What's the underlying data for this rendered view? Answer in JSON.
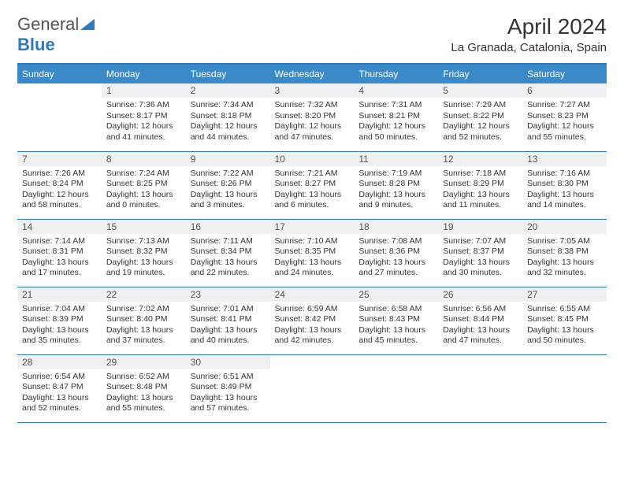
{
  "logo": {
    "word1": "General",
    "word2": "Blue"
  },
  "title": "April 2024",
  "location": "La Granada, Catalonia, Spain",
  "colors": {
    "header_bg": "#3a8ac9",
    "header_text": "#ffffff",
    "border": "#2e7abf",
    "daynum_bg": "#eef0f1",
    "text": "#333333"
  },
  "weekdays": [
    "Sunday",
    "Monday",
    "Tuesday",
    "Wednesday",
    "Thursday",
    "Friday",
    "Saturday"
  ],
  "weeks": [
    [
      null,
      {
        "n": "1",
        "sr": "Sunrise: 7:36 AM",
        "ss": "Sunset: 8:17 PM",
        "dl": "Daylight: 12 hours and 41 minutes."
      },
      {
        "n": "2",
        "sr": "Sunrise: 7:34 AM",
        "ss": "Sunset: 8:18 PM",
        "dl": "Daylight: 12 hours and 44 minutes."
      },
      {
        "n": "3",
        "sr": "Sunrise: 7:32 AM",
        "ss": "Sunset: 8:20 PM",
        "dl": "Daylight: 12 hours and 47 minutes."
      },
      {
        "n": "4",
        "sr": "Sunrise: 7:31 AM",
        "ss": "Sunset: 8:21 PM",
        "dl": "Daylight: 12 hours and 50 minutes."
      },
      {
        "n": "5",
        "sr": "Sunrise: 7:29 AM",
        "ss": "Sunset: 8:22 PM",
        "dl": "Daylight: 12 hours and 52 minutes."
      },
      {
        "n": "6",
        "sr": "Sunrise: 7:27 AM",
        "ss": "Sunset: 8:23 PM",
        "dl": "Daylight: 12 hours and 55 minutes."
      }
    ],
    [
      {
        "n": "7",
        "sr": "Sunrise: 7:26 AM",
        "ss": "Sunset: 8:24 PM",
        "dl": "Daylight: 12 hours and 58 minutes."
      },
      {
        "n": "8",
        "sr": "Sunrise: 7:24 AM",
        "ss": "Sunset: 8:25 PM",
        "dl": "Daylight: 13 hours and 0 minutes."
      },
      {
        "n": "9",
        "sr": "Sunrise: 7:22 AM",
        "ss": "Sunset: 8:26 PM",
        "dl": "Daylight: 13 hours and 3 minutes."
      },
      {
        "n": "10",
        "sr": "Sunrise: 7:21 AM",
        "ss": "Sunset: 8:27 PM",
        "dl": "Daylight: 13 hours and 6 minutes."
      },
      {
        "n": "11",
        "sr": "Sunrise: 7:19 AM",
        "ss": "Sunset: 8:28 PM",
        "dl": "Daylight: 13 hours and 9 minutes."
      },
      {
        "n": "12",
        "sr": "Sunrise: 7:18 AM",
        "ss": "Sunset: 8:29 PM",
        "dl": "Daylight: 13 hours and 11 minutes."
      },
      {
        "n": "13",
        "sr": "Sunrise: 7:16 AM",
        "ss": "Sunset: 8:30 PM",
        "dl": "Daylight: 13 hours and 14 minutes."
      }
    ],
    [
      {
        "n": "14",
        "sr": "Sunrise: 7:14 AM",
        "ss": "Sunset: 8:31 PM",
        "dl": "Daylight: 13 hours and 17 minutes."
      },
      {
        "n": "15",
        "sr": "Sunrise: 7:13 AM",
        "ss": "Sunset: 8:32 PM",
        "dl": "Daylight: 13 hours and 19 minutes."
      },
      {
        "n": "16",
        "sr": "Sunrise: 7:11 AM",
        "ss": "Sunset: 8:34 PM",
        "dl": "Daylight: 13 hours and 22 minutes."
      },
      {
        "n": "17",
        "sr": "Sunrise: 7:10 AM",
        "ss": "Sunset: 8:35 PM",
        "dl": "Daylight: 13 hours and 24 minutes."
      },
      {
        "n": "18",
        "sr": "Sunrise: 7:08 AM",
        "ss": "Sunset: 8:36 PM",
        "dl": "Daylight: 13 hours and 27 minutes."
      },
      {
        "n": "19",
        "sr": "Sunrise: 7:07 AM",
        "ss": "Sunset: 8:37 PM",
        "dl": "Daylight: 13 hours and 30 minutes."
      },
      {
        "n": "20",
        "sr": "Sunrise: 7:05 AM",
        "ss": "Sunset: 8:38 PM",
        "dl": "Daylight: 13 hours and 32 minutes."
      }
    ],
    [
      {
        "n": "21",
        "sr": "Sunrise: 7:04 AM",
        "ss": "Sunset: 8:39 PM",
        "dl": "Daylight: 13 hours and 35 minutes."
      },
      {
        "n": "22",
        "sr": "Sunrise: 7:02 AM",
        "ss": "Sunset: 8:40 PM",
        "dl": "Daylight: 13 hours and 37 minutes."
      },
      {
        "n": "23",
        "sr": "Sunrise: 7:01 AM",
        "ss": "Sunset: 8:41 PM",
        "dl": "Daylight: 13 hours and 40 minutes."
      },
      {
        "n": "24",
        "sr": "Sunrise: 6:59 AM",
        "ss": "Sunset: 8:42 PM",
        "dl": "Daylight: 13 hours and 42 minutes."
      },
      {
        "n": "25",
        "sr": "Sunrise: 6:58 AM",
        "ss": "Sunset: 8:43 PM",
        "dl": "Daylight: 13 hours and 45 minutes."
      },
      {
        "n": "26",
        "sr": "Sunrise: 6:56 AM",
        "ss": "Sunset: 8:44 PM",
        "dl": "Daylight: 13 hours and 47 minutes."
      },
      {
        "n": "27",
        "sr": "Sunrise: 6:55 AM",
        "ss": "Sunset: 8:45 PM",
        "dl": "Daylight: 13 hours and 50 minutes."
      }
    ],
    [
      {
        "n": "28",
        "sr": "Sunrise: 6:54 AM",
        "ss": "Sunset: 8:47 PM",
        "dl": "Daylight: 13 hours and 52 minutes."
      },
      {
        "n": "29",
        "sr": "Sunrise: 6:52 AM",
        "ss": "Sunset: 8:48 PM",
        "dl": "Daylight: 13 hours and 55 minutes."
      },
      {
        "n": "30",
        "sr": "Sunrise: 6:51 AM",
        "ss": "Sunset: 8:49 PM",
        "dl": "Daylight: 13 hours and 57 minutes."
      },
      null,
      null,
      null,
      null
    ]
  ]
}
